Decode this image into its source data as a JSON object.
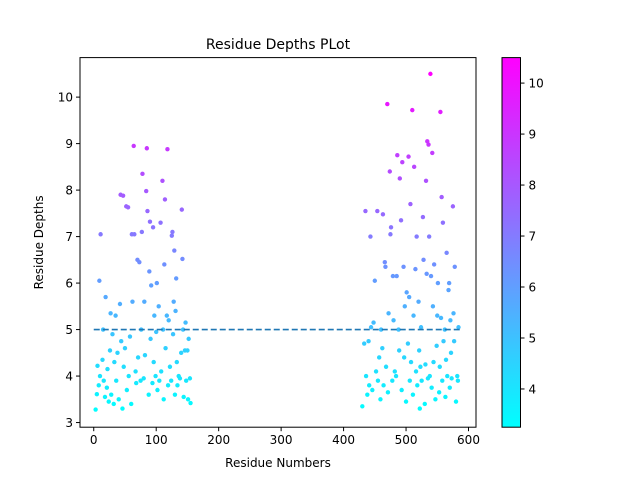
{
  "chart_data": {
    "type": "scatter",
    "title": "Residue Depths PLot",
    "xlabel": "Residue Numbers",
    "ylabel": "Residue Depths",
    "xlim": [
      -22,
      612
    ],
    "ylim": [
      2.9,
      10.85
    ],
    "x_ticks": [
      0,
      100,
      200,
      300,
      400,
      500,
      600
    ],
    "y_ticks": [
      3,
      4,
      5,
      6,
      7,
      8,
      9,
      10
    ],
    "grid": false,
    "threshold_line": {
      "y": 5,
      "x": [
        0,
        586
      ],
      "style": "dashed",
      "color": "#1f77b4"
    },
    "colorbar": {
      "colormap": "cool",
      "min": 3.25,
      "max": 10.5,
      "ticks": [
        4,
        5,
        6,
        7,
        8,
        9,
        10
      ],
      "low_color": "#00ffff",
      "high_color": "#ff00ff"
    },
    "series": [
      {
        "points": [
          [
            3,
            3.28
          ],
          [
            6,
            4.22
          ],
          [
            5,
            3.61
          ],
          [
            8,
            3.8
          ],
          [
            10,
            4.0
          ],
          [
            9,
            6.05
          ],
          [
            11,
            7.05
          ],
          [
            14,
            4.35
          ],
          [
            15,
            5.0
          ],
          [
            16,
            3.9
          ],
          [
            18,
            3.55
          ],
          [
            19,
            5.7
          ],
          [
            21,
            3.75
          ],
          [
            22,
            4.15
          ],
          [
            24,
            3.45
          ],
          [
            26,
            4.55
          ],
          [
            27,
            5.35
          ],
          [
            28,
            3.6
          ],
          [
            30,
            4.9
          ],
          [
            32,
            3.4
          ],
          [
            33,
            4.3
          ],
          [
            35,
            5.3
          ],
          [
            36,
            3.9
          ],
          [
            38,
            4.5
          ],
          [
            40,
            3.5
          ],
          [
            42,
            5.55
          ],
          [
            43,
            7.9
          ],
          [
            44,
            4.75
          ],
          [
            46,
            3.3
          ],
          [
            47,
            7.88
          ],
          [
            48,
            4.2
          ],
          [
            50,
            4.6
          ],
          [
            52,
            7.65
          ],
          [
            53,
            3.7
          ],
          [
            55,
            7.63
          ],
          [
            56,
            4.0
          ],
          [
            58,
            4.85
          ],
          [
            60,
            3.4
          ],
          [
            61,
            7.05
          ],
          [
            62,
            5.6
          ],
          [
            64,
            8.95
          ],
          [
            65,
            7.05
          ],
          [
            67,
            4.1
          ],
          [
            68,
            3.85
          ],
          [
            70,
            6.5
          ],
          [
            71,
            4.4
          ],
          [
            73,
            6.45
          ],
          [
            75,
            3.9
          ],
          [
            76,
            5.0
          ],
          [
            77,
            7.1
          ],
          [
            78,
            8.35
          ],
          [
            80,
            3.95
          ],
          [
            81,
            5.6
          ],
          [
            82,
            4.45
          ],
          [
            84,
            7.98
          ],
          [
            85,
            8.9
          ],
          [
            86,
            7.55
          ],
          [
            88,
            3.6
          ],
          [
            89,
            6.25
          ],
          [
            90,
            7.32
          ],
          [
            91,
            4.8
          ],
          [
            92,
            5.95
          ],
          [
            94,
            3.85
          ],
          [
            95,
            7.2
          ],
          [
            96,
            4.3
          ],
          [
            97,
            5.3
          ],
          [
            99,
            4.0
          ],
          [
            100,
            4.95
          ],
          [
            101,
            6.0
          ],
          [
            102,
            3.7
          ],
          [
            104,
            5.5
          ],
          [
            105,
            3.9
          ],
          [
            107,
            7.3
          ],
          [
            108,
            4.1
          ],
          [
            110,
            8.2
          ],
          [
            111,
            5.0
          ],
          [
            112,
            3.5
          ],
          [
            113,
            6.4
          ],
          [
            114,
            7.8
          ],
          [
            115,
            4.6
          ],
          [
            117,
            5.3
          ],
          [
            118,
            8.88
          ],
          [
            119,
            3.8
          ],
          [
            120,
            5.2
          ],
          [
            122,
            4.2
          ],
          [
            124,
            3.9
          ],
          [
            125,
            7.02
          ],
          [
            126,
            7.1
          ],
          [
            127,
            4.9
          ],
          [
            128,
            5.6
          ],
          [
            129,
            6.7
          ],
          [
            130,
            3.6
          ],
          [
            131,
            5.4
          ],
          [
            132,
            6.1
          ],
          [
            133,
            4.3
          ],
          [
            134,
            3.8
          ],
          [
            136,
            4.0
          ],
          [
            138,
            3.95
          ],
          [
            140,
            4.5
          ],
          [
            141,
            7.58
          ],
          [
            142,
            6.52
          ],
          [
            143,
            5.0
          ],
          [
            144,
            3.55
          ],
          [
            146,
            4.55
          ],
          [
            147,
            5.15
          ],
          [
            148,
            3.9
          ],
          [
            150,
            4.55
          ],
          [
            151,
            3.5
          ],
          [
            152,
            4.8
          ],
          [
            154,
            3.95
          ],
          [
            155,
            3.42
          ]
        ]
      },
      {
        "points": [
          [
            430,
            3.35
          ],
          [
            433,
            4.7
          ],
          [
            435,
            7.55
          ],
          [
            436,
            4.0
          ],
          [
            438,
            3.6
          ],
          [
            440,
            4.75
          ],
          [
            441,
            3.8
          ],
          [
            443,
            7.0
          ],
          [
            444,
            5.05
          ],
          [
            446,
            3.7
          ],
          [
            448,
            5.15
          ],
          [
            450,
            6.05
          ],
          [
            452,
            4.1
          ],
          [
            454,
            7.55
          ],
          [
            455,
            3.9
          ],
          [
            457,
            4.4
          ],
          [
            459,
            3.5
          ],
          [
            460,
            5.0
          ],
          [
            462,
            4.6
          ],
          [
            463,
            7.48
          ],
          [
            464,
            3.8
          ],
          [
            466,
            6.45
          ],
          [
            467,
            6.35
          ],
          [
            468,
            4.2
          ],
          [
            470,
            9.85
          ],
          [
            471,
            3.65
          ],
          [
            472,
            5.35
          ],
          [
            474,
            8.4
          ],
          [
            475,
            7.05
          ],
          [
            476,
            7.2
          ],
          [
            478,
            3.9
          ],
          [
            479,
            6.15
          ],
          [
            480,
            5.2
          ],
          [
            482,
            4.1
          ],
          [
            484,
            4.0
          ],
          [
            485,
            6.15
          ],
          [
            486,
            8.75
          ],
          [
            488,
            5.0
          ],
          [
            489,
            4.55
          ],
          [
            490,
            8.25
          ],
          [
            492,
            7.35
          ],
          [
            493,
            3.7
          ],
          [
            494,
            8.6
          ],
          [
            496,
            6.35
          ],
          [
            497,
            4.4
          ],
          [
            498,
            5.5
          ],
          [
            500,
            3.45
          ],
          [
            501,
            5.8
          ],
          [
            503,
            4.7
          ],
          [
            504,
            8.72
          ],
          [
            505,
            5.7
          ],
          [
            506,
            3.9
          ],
          [
            507,
            7.7
          ],
          [
            508,
            4.3
          ],
          [
            510,
            9.72
          ],
          [
            511,
            3.6
          ],
          [
            512,
            5.3
          ],
          [
            513,
            8.5
          ],
          [
            515,
            6.3
          ],
          [
            516,
            4.1
          ],
          [
            517,
            7.0
          ],
          [
            518,
            3.8
          ],
          [
            520,
            5.6
          ],
          [
            521,
            4.55
          ],
          [
            522,
            3.3
          ],
          [
            523,
            4.2
          ],
          [
            524,
            5.05
          ],
          [
            525,
            3.9
          ],
          [
            527,
            7.42
          ],
          [
            528,
            6.5
          ],
          [
            530,
            3.4
          ],
          [
            531,
            4.25
          ],
          [
            532,
            8.2
          ],
          [
            533,
            6.2
          ],
          [
            534,
            9.05
          ],
          [
            535,
            3.95
          ],
          [
            536,
            8.98
          ],
          [
            537,
            7.0
          ],
          [
            538,
            4.0
          ],
          [
            539,
            10.5
          ],
          [
            540,
            6.15
          ],
          [
            541,
            3.75
          ],
          [
            542,
            8.8
          ],
          [
            543,
            5.5
          ],
          [
            544,
            4.3
          ],
          [
            545,
            6.4
          ],
          [
            547,
            3.5
          ],
          [
            549,
            4.65
          ],
          [
            550,
            5.3
          ],
          [
            551,
            6.0
          ],
          [
            553,
            3.65
          ],
          [
            554,
            4.2
          ],
          [
            555,
            9.68
          ],
          [
            556,
            5.25
          ],
          [
            557,
            7.85
          ],
          [
            558,
            3.9
          ],
          [
            559,
            7.3
          ],
          [
            560,
            4.75
          ],
          [
            562,
            5.0
          ],
          [
            563,
            3.55
          ],
          [
            564,
            4.35
          ],
          [
            565,
            6.65
          ],
          [
            566,
            4.0
          ],
          [
            568,
            5.85
          ],
          [
            569,
            6.0
          ],
          [
            570,
            3.75
          ],
          [
            571,
            5.2
          ],
          [
            572,
            4.5
          ],
          [
            573,
            3.95
          ],
          [
            575,
            7.65
          ],
          [
            576,
            5.35
          ],
          [
            577,
            4.75
          ],
          [
            578,
            6.35
          ],
          [
            580,
            3.45
          ],
          [
            582,
            4.0
          ],
          [
            583,
            3.9
          ],
          [
            584,
            5.05
          ]
        ]
      }
    ]
  }
}
